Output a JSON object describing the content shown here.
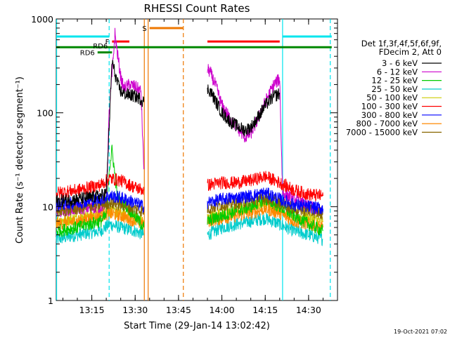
{
  "chart_data": {
    "type": "line",
    "title": "RHESSI Count Rates",
    "xlabel": "Start Time (29-Jan-14 13:02:42)",
    "ylabel": "Count Rate (s⁻¹ detector segment⁻¹)",
    "yscale": "log",
    "ylim": [
      1,
      1000
    ],
    "xlim": [
      "13:02:42",
      "14:40:00"
    ],
    "x_ticks": [
      "13:15",
      "13:30",
      "13:45",
      "14:00",
      "14:15",
      "14:30"
    ],
    "y_ticks": [
      "1",
      "10",
      "100",
      "1000"
    ],
    "grid": false,
    "legend_position": "right",
    "legend_header": [
      "Det 1f,3f,4f,5f,6f,9f,",
      "FDecim 2, Att 0"
    ],
    "footer_text": "19-Oct-2021 07:02",
    "gap": [
      "13:33:30",
      "13:55:00"
    ],
    "series": [
      {
        "name": "3 - 6 keV",
        "color": "#000000",
        "left": [
          [
            "13:02:42",
            11.5
          ],
          [
            "13:10",
            12
          ],
          [
            "13:18",
            13
          ],
          [
            "13:20",
            14
          ],
          [
            "13:21",
            70
          ],
          [
            "13:22",
            360
          ],
          [
            "13:23",
            260
          ],
          [
            "13:24",
            200
          ],
          [
            "13:25",
            170
          ],
          [
            "13:26",
            160
          ],
          [
            "13:28",
            155
          ],
          [
            "13:30",
            150
          ],
          [
            "13:32",
            140
          ],
          [
            "13:33",
            130
          ]
        ],
        "right": [
          [
            "13:55",
            180
          ],
          [
            "13:56",
            170
          ],
          [
            "13:58",
            130
          ],
          [
            "14:00",
            100
          ],
          [
            "14:03",
            80
          ],
          [
            "14:06",
            70
          ],
          [
            "14:08",
            65
          ],
          [
            "14:10",
            70
          ],
          [
            "14:12",
            85
          ],
          [
            "14:15",
            120
          ],
          [
            "14:18",
            150
          ],
          [
            "14:20",
            160
          ]
        ]
      },
      {
        "name": "6 - 12 keV",
        "color": "#cc00cc",
        "left": [
          [
            "13:02:42",
            9
          ],
          [
            "13:10",
            9.5
          ],
          [
            "13:18",
            10
          ],
          [
            "13:20",
            11
          ],
          [
            "13:21",
            100
          ],
          [
            "13:22",
            250
          ],
          [
            "13:23",
            700
          ],
          [
            "13:24",
            400
          ],
          [
            "13:25",
            240
          ],
          [
            "13:26",
            180
          ],
          [
            "13:28",
            200
          ],
          [
            "13:30",
            190
          ],
          [
            "13:32",
            170
          ],
          [
            "13:33",
            25
          ]
        ],
        "right": [
          [
            "13:55",
            290
          ],
          [
            "13:56",
            270
          ],
          [
            "13:58",
            190
          ],
          [
            "14:00",
            120
          ],
          [
            "14:03",
            85
          ],
          [
            "14:06",
            65
          ],
          [
            "14:08",
            55
          ],
          [
            "14:10",
            60
          ],
          [
            "14:12",
            80
          ],
          [
            "14:15",
            130
          ],
          [
            "14:18",
            200
          ],
          [
            "14:20",
            230
          ],
          [
            "14:21",
            14
          ],
          [
            "14:25",
            12
          ],
          [
            "14:30",
            10
          ],
          [
            "14:35",
            9
          ]
        ]
      },
      {
        "name": "12 - 25 keV",
        "color": "#00cc00",
        "left": [
          [
            "13:02:42",
            5.5
          ],
          [
            "13:10",
            6
          ],
          [
            "13:18",
            7
          ],
          [
            "13:20",
            8
          ],
          [
            "13:21",
            25
          ],
          [
            "13:22",
            40
          ],
          [
            "13:24",
            12
          ],
          [
            "13:27",
            10
          ],
          [
            "13:30",
            8
          ],
          [
            "13:33",
            6
          ]
        ],
        "right": [
          [
            "13:55",
            7
          ],
          [
            "14:00",
            8
          ],
          [
            "14:05",
            9
          ],
          [
            "14:10",
            10
          ],
          [
            "14:15",
            12
          ],
          [
            "14:20",
            10
          ],
          [
            "14:25",
            8
          ],
          [
            "14:30",
            6.5
          ],
          [
            "14:35",
            5.5
          ]
        ]
      },
      {
        "name": "25 - 50 keV",
        "color": "#00cccc",
        "left": [
          [
            "13:02:42",
            4.5
          ],
          [
            "13:10",
            5
          ],
          [
            "13:18",
            5.5
          ],
          [
            "13:21",
            6.5
          ],
          [
            "13:25",
            6
          ],
          [
            "13:30",
            5.5
          ],
          [
            "13:33",
            5
          ]
        ],
        "right": [
          [
            "13:55",
            5
          ],
          [
            "14:00",
            6
          ],
          [
            "14:05",
            6.5
          ],
          [
            "14:10",
            7
          ],
          [
            "14:15",
            7.5
          ],
          [
            "14:20",
            6.5
          ],
          [
            "14:25",
            5.5
          ],
          [
            "14:30",
            5
          ],
          [
            "14:35",
            4.5
          ]
        ]
      },
      {
        "name": "50 - 100 keV",
        "color": "#cccc00",
        "left": [
          [
            "13:02:42",
            7
          ],
          [
            "13:10",
            7.5
          ],
          [
            "13:18",
            8.5
          ],
          [
            "13:21",
            9
          ],
          [
            "13:25",
            8.5
          ],
          [
            "13:30",
            7.5
          ],
          [
            "13:33",
            7
          ]
        ],
        "right": [
          [
            "13:55",
            7.5
          ],
          [
            "14:00",
            8.5
          ],
          [
            "14:05",
            9
          ],
          [
            "14:10",
            10
          ],
          [
            "14:15",
            11
          ],
          [
            "14:20",
            9.5
          ],
          [
            "14:25",
            8
          ],
          [
            "14:30",
            7.5
          ],
          [
            "14:35",
            7
          ]
        ]
      },
      {
        "name": "100 - 300 keV",
        "color": "#ff0000",
        "left": [
          [
            "13:02:42",
            14
          ],
          [
            "13:10",
            15
          ],
          [
            "13:18",
            17
          ],
          [
            "13:21",
            20
          ],
          [
            "13:25",
            19
          ],
          [
            "13:30",
            16
          ],
          [
            "13:33",
            15
          ]
        ],
        "right": [
          [
            "13:55",
            17
          ],
          [
            "14:00",
            18
          ],
          [
            "14:05",
            18
          ],
          [
            "14:10",
            19
          ],
          [
            "14:15",
            21
          ],
          [
            "14:20",
            18
          ],
          [
            "14:25",
            15
          ],
          [
            "14:30",
            13.5
          ],
          [
            "14:35",
            13
          ]
        ]
      },
      {
        "name": "300 - 800 keV",
        "color": "#0000ff",
        "left": [
          [
            "13:02:42",
            10.5
          ],
          [
            "13:10",
            11
          ],
          [
            "13:18",
            12
          ],
          [
            "13:21",
            13
          ],
          [
            "13:25",
            12.5
          ],
          [
            "13:30",
            11
          ],
          [
            "13:33",
            10
          ]
        ],
        "right": [
          [
            "13:55",
            11
          ],
          [
            "14:00",
            12
          ],
          [
            "14:05",
            12.5
          ],
          [
            "14:10",
            13
          ],
          [
            "14:15",
            14
          ],
          [
            "14:20",
            12
          ],
          [
            "14:25",
            10.5
          ],
          [
            "14:30",
            10
          ],
          [
            "14:35",
            9.5
          ]
        ]
      },
      {
        "name": "800 - 7000 keV",
        "color": "#ff8800",
        "left": [
          [
            "13:02:42",
            6.5
          ],
          [
            "13:10",
            7
          ],
          [
            "13:18",
            8
          ],
          [
            "13:21",
            8.5
          ],
          [
            "13:25",
            8
          ],
          [
            "13:30",
            7
          ],
          [
            "13:33",
            6.5
          ]
        ],
        "right": [
          [
            "13:55",
            7
          ],
          [
            "14:00",
            7.5
          ],
          [
            "14:05",
            8
          ],
          [
            "14:10",
            8.5
          ],
          [
            "14:15",
            9.5
          ],
          [
            "14:20",
            8.5
          ],
          [
            "14:25",
            7
          ],
          [
            "14:30",
            6.5
          ],
          [
            "14:35",
            6
          ]
        ]
      },
      {
        "name": "7000 - 15000 keV",
        "color": "#886600",
        "left": [
          [
            "13:02:42",
            9
          ],
          [
            "13:10",
            9.5
          ],
          [
            "13:18",
            10.5
          ],
          [
            "13:21",
            11
          ],
          [
            "13:25",
            10.5
          ],
          [
            "13:30",
            9.5
          ],
          [
            "13:33",
            9
          ]
        ],
        "right": [
          [
            "13:55",
            9.5
          ],
          [
            "14:00",
            10.5
          ],
          [
            "14:05",
            11
          ],
          [
            "14:10",
            11.5
          ],
          [
            "14:15",
            12.5
          ],
          [
            "14:20",
            11
          ],
          [
            "14:25",
            9.5
          ],
          [
            "14:30",
            9
          ],
          [
            "14:35",
            8.5
          ]
        ]
      }
    ],
    "flag_bars": [
      {
        "label": "",
        "color": "#00e5ee",
        "y": 650,
        "segments": [
          [
            "13:02:42",
            "13:21"
          ],
          [
            "14:21",
            "14:38"
          ]
        ]
      },
      {
        "label": "",
        "color": "#008800",
        "y": 500,
        "segments": [
          [
            "13:02:42",
            "14:38"
          ]
        ]
      },
      {
        "label": "S",
        "color": "#ee7700",
        "y": 800,
        "segments": [
          [
            "13:35",
            "13:46:30"
          ]
        ]
      },
      {
        "label": "F",
        "color": "#ff0000",
        "y": 575,
        "segments": [
          [
            "13:22",
            "13:28"
          ],
          [
            "13:55",
            "14:20"
          ]
        ]
      },
      {
        "label": "RD6",
        "color": "#008800",
        "y": 520,
        "segments": []
      },
      {
        "label": "RD6",
        "color": "#008800",
        "y": 440,
        "segments": [
          [
            "13:17",
            "13:22"
          ]
        ]
      }
    ],
    "vertical_markers": [
      {
        "time": "13:21",
        "color": "#00e5ee",
        "style": "dashed"
      },
      {
        "time": "13:33:10",
        "color": "#ee7700",
        "style": "solid"
      },
      {
        "time": "13:34:30",
        "color": "#ee7700",
        "style": "solid"
      },
      {
        "time": "13:46:40",
        "color": "#ee7700",
        "style": "dashed"
      },
      {
        "time": "14:21",
        "color": "#00e5ee",
        "style": "solid"
      },
      {
        "time": "14:37:30",
        "color": "#00e5ee",
        "style": "dashed"
      },
      {
        "time": "13:02:50",
        "color": "#00e5ee",
        "style": "solid"
      }
    ]
  }
}
